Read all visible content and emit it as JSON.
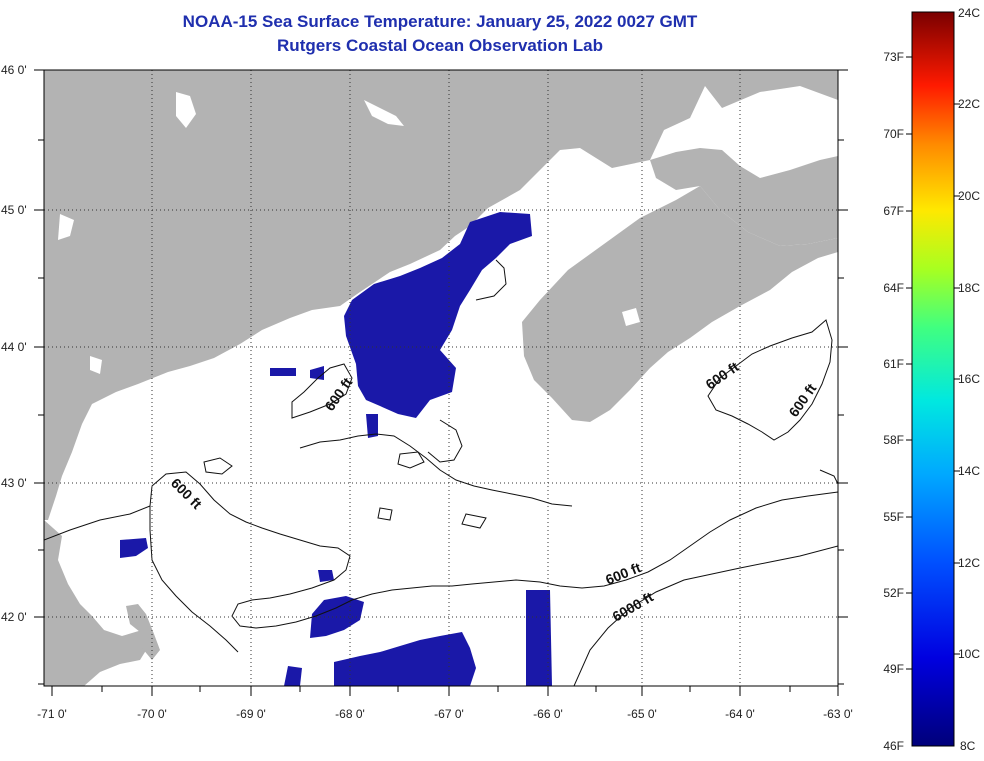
{
  "title": {
    "line1": "NOAA-15 Sea Surface Temperature:  January 25, 2022 0027 GMT",
    "line2": "Rutgers Coastal Ocean Observation Lab"
  },
  "map": {
    "lat_labels": [
      "46 0'",
      "45 0'",
      "44 0'",
      "43 0'",
      "42 0'"
    ],
    "lon_labels": [
      "-71 0'",
      "-70 0'",
      "-69 0'",
      "-68 0'",
      "-67 0'",
      "-66 0'",
      "-65 0'",
      "-64 0'",
      "-63 0'"
    ],
    "contour_labels": [
      "600 ft",
      "600 ft",
      "600 ft",
      "600 ft",
      "600 ft",
      "6000 ft"
    ],
    "land_color": "#b3b3b3",
    "sst_color": "#1a18a8"
  },
  "colorbar": {
    "f_labels": [
      "73F",
      "70F",
      "67F",
      "64F",
      "61F",
      "58F",
      "55F",
      "52F",
      "49F",
      "46F"
    ],
    "c_labels": [
      "24C",
      "22C",
      "20C",
      "18C",
      "16C",
      "14C",
      "12C",
      "10C",
      "8C"
    ]
  }
}
